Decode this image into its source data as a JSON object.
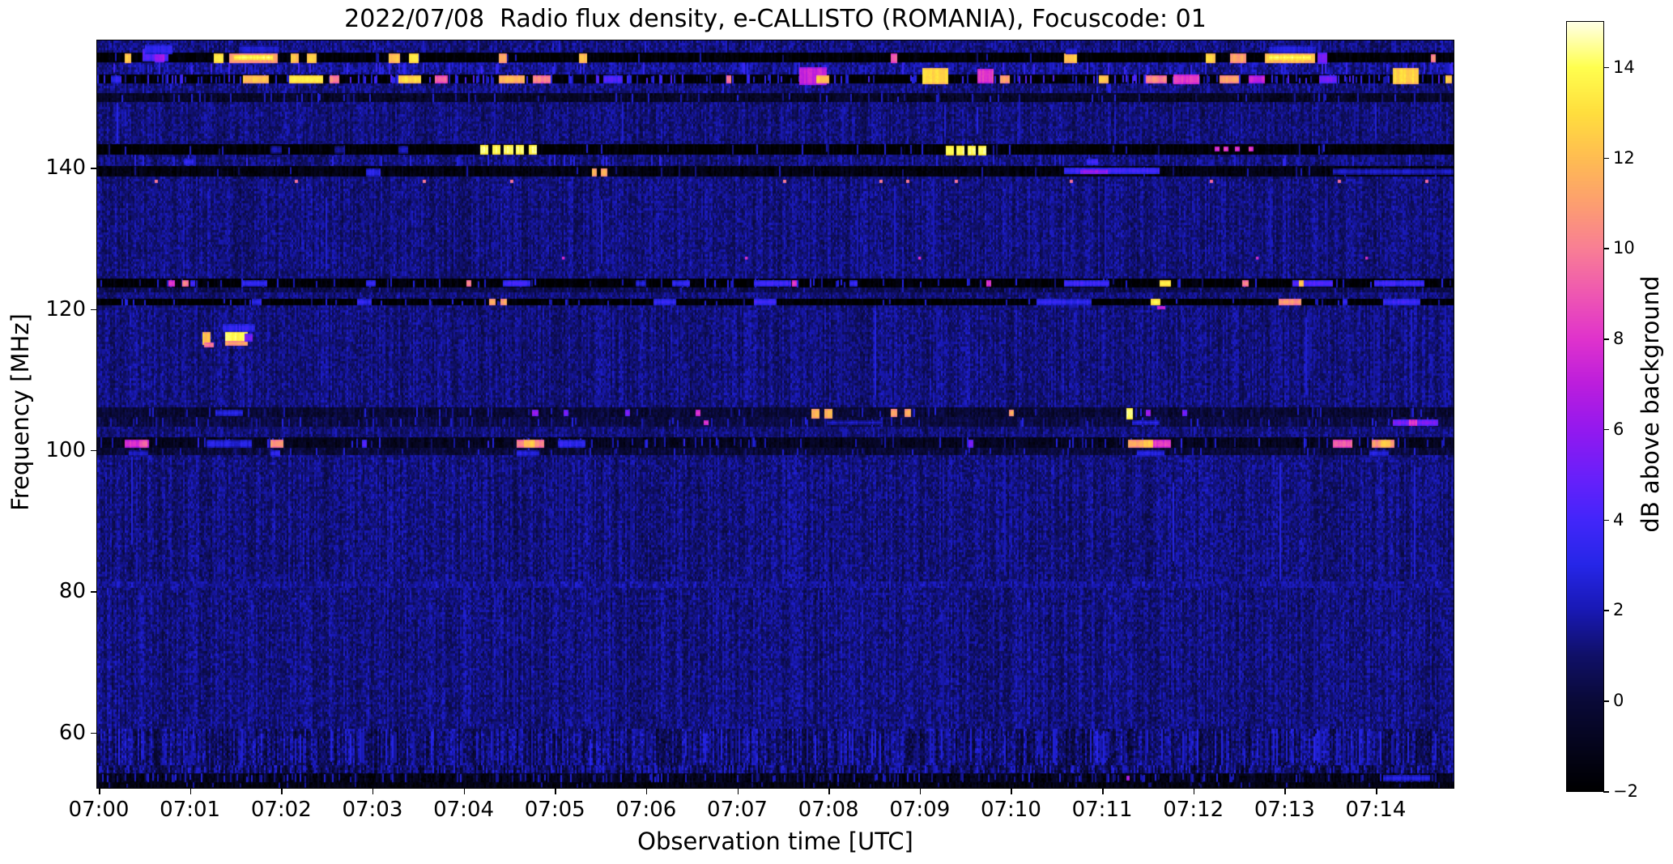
{
  "chart_data": {
    "type": "heatmap",
    "title": "2022/07/08  Radio flux density, e-CALLISTO (ROMANIA), Focuscode: 01",
    "xlabel": "Observation time [UTC]",
    "ylabel": "Frequency [MHz]",
    "xlim_minutes": [
      0,
      14.87
    ],
    "ylim": [
      52.2,
      158.0
    ],
    "x_ticks": [
      {
        "minute": 0,
        "label": "07:00"
      },
      {
        "minute": 1,
        "label": "07:01"
      },
      {
        "minute": 2,
        "label": "07:02"
      },
      {
        "minute": 3,
        "label": "07:03"
      },
      {
        "minute": 4,
        "label": "07:04"
      },
      {
        "minute": 5,
        "label": "07:05"
      },
      {
        "minute": 6,
        "label": "07:06"
      },
      {
        "minute": 7,
        "label": "07:07"
      },
      {
        "minute": 8,
        "label": "07:08"
      },
      {
        "minute": 9,
        "label": "07:09"
      },
      {
        "minute": 10,
        "label": "07:10"
      },
      {
        "minute": 11,
        "label": "07:11"
      },
      {
        "minute": 12,
        "label": "07:12"
      },
      {
        "minute": 13,
        "label": "07:13"
      },
      {
        "minute": 14,
        "label": "07:14"
      }
    ],
    "y_ticks": [
      {
        "value": 140,
        "label": "140"
      },
      {
        "value": 120,
        "label": "120"
      },
      {
        "value": 100,
        "label": "100"
      },
      {
        "value": 80,
        "label": "80"
      },
      {
        "value": 60,
        "label": "60"
      }
    ],
    "colorbar": {
      "label": "dB above background",
      "range": [
        -2,
        15
      ],
      "ticks": [
        {
          "value": -2,
          "label": "−2"
        },
        {
          "value": 0,
          "label": "0"
        },
        {
          "value": 2,
          "label": "2"
        },
        {
          "value": 4,
          "label": "4"
        },
        {
          "value": 6,
          "label": "6"
        },
        {
          "value": 8,
          "label": "8"
        },
        {
          "value": 10,
          "label": "10"
        },
        {
          "value": 12,
          "label": "12"
        },
        {
          "value": 14,
          "label": "14"
        }
      ],
      "colormap_stops": [
        [
          -2,
          "#000000"
        ],
        [
          -1,
          "#05051c"
        ],
        [
          0,
          "#0a0a38"
        ],
        [
          1,
          "#101068"
        ],
        [
          2,
          "#1919b4"
        ],
        [
          3,
          "#2626e8"
        ],
        [
          4,
          "#4326fa"
        ],
        [
          5,
          "#6b20fa"
        ],
        [
          6,
          "#9419ef"
        ],
        [
          7,
          "#bc1edd"
        ],
        [
          8,
          "#e033cd"
        ],
        [
          9,
          "#ef58b2"
        ],
        [
          10,
          "#f97f95"
        ],
        [
          11,
          "#fd9f70"
        ],
        [
          12,
          "#ffbd52"
        ],
        [
          13,
          "#ffdf3e"
        ],
        [
          14,
          "#ffff4f"
        ],
        [
          15,
          "#ffffe6"
        ]
      ]
    },
    "background_level_db": 0.9,
    "bands": [
      [
        156.2,
        158.0,
        0.9,
        0.9,
        0.02,
        1.5,
        3.0,
        1
      ],
      [
        154.8,
        156.2,
        -1.9,
        0.25,
        0.02,
        1.0,
        2.5,
        1
      ],
      [
        153.1,
        154.8,
        1.2,
        0.9,
        0.1,
        2.0,
        4.0,
        1
      ],
      [
        151.9,
        153.1,
        -1.9,
        0.25,
        0.3,
        1.5,
        4.5,
        1
      ],
      [
        150.5,
        151.9,
        0.9,
        0.8,
        0.05,
        1.5,
        3.0,
        1
      ],
      [
        149.2,
        150.5,
        -0.8,
        0.5,
        0.08,
        1.0,
        3.0,
        1
      ],
      [
        143.3,
        149.2,
        0.9,
        0.8,
        0.02,
        1.5,
        3.0,
        1
      ],
      [
        141.8,
        143.3,
        -1.9,
        0.25,
        0.05,
        1.0,
        3.0,
        1
      ],
      [
        140.2,
        141.8,
        0.9,
        0.8,
        0.1,
        1.5,
        3.5,
        1
      ],
      [
        138.7,
        140.2,
        -1.5,
        0.35,
        0.03,
        1.0,
        2.5,
        1
      ],
      [
        124.2,
        138.7,
        0.95,
        0.8,
        0.01,
        1.5,
        3.0,
        1
      ],
      [
        123.0,
        124.2,
        -1.9,
        0.25,
        0.1,
        1.0,
        3.5,
        1
      ],
      [
        122.3,
        123.0,
        0.2,
        0.6,
        0.05,
        1.0,
        2.5,
        1
      ],
      [
        121.4,
        122.3,
        0.9,
        0.7,
        0.03,
        1.0,
        2.5,
        1
      ],
      [
        120.5,
        121.4,
        -1.9,
        0.25,
        0.07,
        1.0,
        3.0,
        1
      ],
      [
        106.0,
        120.5,
        0.95,
        0.8,
        0.01,
        1.5,
        3.0,
        1
      ],
      [
        104.6,
        106.0,
        -0.4,
        0.5,
        0.06,
        1.0,
        3.0,
        1
      ],
      [
        103.3,
        104.6,
        0.0,
        0.5,
        0.1,
        1.0,
        3.0,
        1
      ],
      [
        101.8,
        103.3,
        0.9,
        0.7,
        0.03,
        1.0,
        2.5,
        1
      ],
      [
        100.3,
        101.8,
        -1.0,
        0.4,
        0.12,
        1.0,
        3.5,
        1
      ],
      [
        99.2,
        100.3,
        -0.2,
        0.5,
        0.08,
        1.0,
        3.0,
        1
      ],
      [
        81.4,
        99.2,
        0.95,
        0.85,
        0.01,
        1.5,
        3.0,
        1
      ],
      [
        80.5,
        81.4,
        1.35,
        0.7,
        0.02,
        1.5,
        3.0,
        1
      ],
      [
        60.5,
        80.5,
        0.95,
        0.85,
        0.01,
        1.5,
        3.0,
        1
      ],
      [
        55.3,
        60.5,
        0.7,
        1.0,
        0.1,
        1.5,
        3.2,
        2.2
      ],
      [
        54.2,
        55.3,
        0.5,
        1.0,
        0.12,
        1.5,
        3.0,
        2.5
      ],
      [
        53.0,
        54.2,
        -1.2,
        0.5,
        0.2,
        1.0,
        3.0,
        1.5
      ],
      [
        52.2,
        53.0,
        -1.5,
        0.4,
        0.05,
        1.0,
        2.0,
        1
      ]
    ],
    "bursts": [
      [
        0.3,
        155.5,
        0.07,
        1.3,
        13
      ],
      [
        0.5,
        155.9,
        0.28,
        1.8,
        5
      ],
      [
        0.63,
        155.8,
        0.1,
        1.5,
        7
      ],
      [
        1.28,
        155.5,
        0.1,
        1.3,
        14
      ],
      [
        1.45,
        155.5,
        0.52,
        1.3,
        12
      ],
      [
        1.5,
        155.6,
        0.42,
        0.6,
        14.7
      ],
      [
        2.12,
        155.5,
        0.08,
        1.3,
        13
      ],
      [
        2.3,
        155.5,
        0.1,
        1.3,
        13.5
      ],
      [
        3.2,
        155.5,
        0.12,
        1.3,
        13
      ],
      [
        3.42,
        155.5,
        0.1,
        1.3,
        14
      ],
      [
        4.4,
        155.5,
        0.08,
        1.3,
        12
      ],
      [
        5.28,
        155.5,
        0.08,
        1.3,
        13
      ],
      [
        8.7,
        155.5,
        0.07,
        1.3,
        10
      ],
      [
        10.6,
        155.5,
        0.14,
        1.3,
        13
      ],
      [
        12.15,
        155.5,
        0.1,
        1.3,
        13.5
      ],
      [
        12.42,
        155.5,
        0.18,
        1.3,
        12
      ],
      [
        12.8,
        155.5,
        0.55,
        1.3,
        13
      ],
      [
        12.85,
        155.6,
        0.45,
        0.6,
        14.7
      ],
      [
        13.38,
        155.5,
        0.1,
        1.5,
        6
      ],
      [
        14.62,
        155.5,
        0.05,
        1.1,
        11
      ],
      [
        0.52,
        156.8,
        0.3,
        1.2,
        4
      ],
      [
        1.55,
        156.8,
        0.45,
        1.0,
        3.2
      ],
      [
        12.85,
        156.8,
        0.5,
        1.0,
        3.4
      ],
      [
        10.62,
        156.6,
        0.12,
        0.8,
        3.5
      ],
      [
        0.15,
        152.5,
        0.1,
        1.2,
        4
      ],
      [
        1.6,
        152.5,
        0.28,
        1.2,
        13
      ],
      [
        2.1,
        152.5,
        0.38,
        1.2,
        14
      ],
      [
        2.55,
        152.5,
        0.1,
        1.2,
        11
      ],
      [
        3.3,
        152.5,
        0.24,
        1.2,
        13.5
      ],
      [
        3.7,
        152.5,
        0.14,
        1.2,
        10
      ],
      [
        4.4,
        152.5,
        0.28,
        1.2,
        12.5
      ],
      [
        4.78,
        152.5,
        0.18,
        1.2,
        11
      ],
      [
        5.55,
        152.5,
        0.2,
        1.2,
        5
      ],
      [
        6.9,
        152.5,
        0.05,
        1.2,
        11
      ],
      [
        7.7,
        153.0,
        0.3,
        2.4,
        8
      ],
      [
        7.88,
        152.5,
        0.14,
        1.2,
        13
      ],
      [
        9.05,
        153.0,
        0.28,
        2.2,
        13.5
      ],
      [
        9.65,
        153.0,
        0.18,
        2.0,
        9
      ],
      [
        9.9,
        152.5,
        0.1,
        1.2,
        12
      ],
      [
        10.98,
        152.5,
        0.1,
        1.2,
        13.2
      ],
      [
        11.5,
        152.5,
        0.22,
        1.2,
        11
      ],
      [
        11.8,
        152.5,
        0.28,
        1.4,
        9
      ],
      [
        12.3,
        152.5,
        0.22,
        1.2,
        12
      ],
      [
        12.62,
        152.5,
        0.18,
        1.2,
        8
      ],
      [
        13.4,
        152.5,
        0.18,
        1.2,
        6
      ],
      [
        14.2,
        153.0,
        0.28,
        2.2,
        13.5
      ],
      [
        14.78,
        152.5,
        0.07,
        1.2,
        13.2
      ],
      [
        4.2,
        142.5,
        0.09,
        1.4,
        14.8
      ],
      [
        4.33,
        142.5,
        0.09,
        1.4,
        14.8
      ],
      [
        4.46,
        142.5,
        0.09,
        1.4,
        14.8
      ],
      [
        4.59,
        142.5,
        0.09,
        1.4,
        14.8
      ],
      [
        4.73,
        142.5,
        0.09,
        1.4,
        14.8
      ],
      [
        9.3,
        142.5,
        0.08,
        1.3,
        14.8
      ],
      [
        9.42,
        142.5,
        0.08,
        1.3,
        14.8
      ],
      [
        9.54,
        142.5,
        0.08,
        1.3,
        14.8
      ],
      [
        9.66,
        142.5,
        0.08,
        1.3,
        14.8
      ],
      [
        12.25,
        142.7,
        0.05,
        0.6,
        9
      ],
      [
        12.35,
        142.7,
        0.05,
        0.6,
        9
      ],
      [
        12.47,
        142.7,
        0.05,
        0.6,
        9
      ],
      [
        12.62,
        142.7,
        0.05,
        0.6,
        9
      ],
      [
        1.9,
        142.5,
        0.12,
        1.2,
        2.5
      ],
      [
        2.6,
        142.5,
        0.1,
        1.2,
        2.5
      ],
      [
        3.3,
        142.5,
        0.1,
        1.2,
        2.8
      ],
      [
        2.95,
        139.4,
        0.16,
        1.0,
        3.8
      ],
      [
        5.42,
        139.4,
        0.06,
        1.0,
        12.3
      ],
      [
        5.52,
        139.4,
        0.06,
        1.0,
        12.3
      ],
      [
        10.6,
        139.5,
        1.05,
        0.9,
        4.6
      ],
      [
        10.78,
        139.5,
        0.3,
        0.6,
        7
      ],
      [
        13.55,
        139.5,
        2.0,
        0.8,
        3
      ],
      [
        0.95,
        140.9,
        0.1,
        0.8,
        4
      ],
      [
        10.85,
        140.9,
        0.12,
        0.8,
        4.5
      ],
      [
        0.78,
        123.6,
        0.06,
        1.0,
        9
      ],
      [
        0.93,
        123.6,
        0.06,
        1.0,
        11
      ],
      [
        1.02,
        123.6,
        0.05,
        1.0,
        4.5
      ],
      [
        1.6,
        123.6,
        0.26,
        1.0,
        4
      ],
      [
        2.95,
        123.6,
        0.1,
        1.0,
        4
      ],
      [
        4.05,
        123.6,
        0.05,
        1.0,
        11
      ],
      [
        4.45,
        123.6,
        0.3,
        1.0,
        4.5
      ],
      [
        5.9,
        123.6,
        0.1,
        1.0,
        3.5
      ],
      [
        6.3,
        123.6,
        0.2,
        1.0,
        4
      ],
      [
        7.2,
        123.6,
        0.4,
        1.0,
        4.5
      ],
      [
        7.62,
        123.6,
        0.05,
        1.0,
        9
      ],
      [
        8.25,
        123.6,
        0.08,
        1.0,
        4
      ],
      [
        9.75,
        123.6,
        0.05,
        1.0,
        9
      ],
      [
        10.6,
        123.6,
        0.5,
        1.0,
        4.5
      ],
      [
        11.65,
        123.6,
        0.12,
        1.0,
        14.2
      ],
      [
        12.55,
        123.6,
        0.07,
        1.0,
        11
      ],
      [
        13.1,
        123.6,
        0.45,
        1.0,
        5
      ],
      [
        13.17,
        123.6,
        0.06,
        1.0,
        13
      ],
      [
        14.0,
        123.6,
        0.55,
        1.0,
        4.5
      ],
      [
        1.7,
        121.0,
        0.1,
        0.9,
        4
      ],
      [
        2.85,
        121.0,
        0.15,
        0.9,
        4
      ],
      [
        4.3,
        121.0,
        0.06,
        0.9,
        12
      ],
      [
        4.42,
        121.0,
        0.06,
        0.9,
        12
      ],
      [
        6.1,
        121.0,
        0.25,
        0.9,
        4
      ],
      [
        7.2,
        121.0,
        0.25,
        0.9,
        4.5
      ],
      [
        10.3,
        121.0,
        0.6,
        0.9,
        4
      ],
      [
        11.55,
        121.0,
        0.1,
        0.9,
        14.2
      ],
      [
        11.62,
        120.2,
        0.08,
        0.5,
        9
      ],
      [
        12.95,
        121.0,
        0.25,
        0.9,
        11.5
      ],
      [
        13.65,
        121.0,
        0.06,
        0.9,
        4
      ],
      [
        14.1,
        121.0,
        0.4,
        0.9,
        4.5
      ],
      [
        1.15,
        115.9,
        0.09,
        1.7,
        13
      ],
      [
        1.4,
        116.1,
        0.24,
        1.5,
        14.8
      ],
      [
        1.4,
        115.2,
        0.24,
        0.5,
        12
      ],
      [
        1.38,
        117.3,
        0.34,
        1.2,
        4
      ],
      [
        1.17,
        114.9,
        0.1,
        0.6,
        11
      ],
      [
        1.62,
        116.0,
        0.08,
        1.0,
        6
      ],
      [
        1.3,
        105.3,
        0.3,
        0.8,
        3.5
      ],
      [
        4.77,
        105.3,
        0.06,
        0.8,
        7
      ],
      [
        5.11,
        105.3,
        0.05,
        0.8,
        6
      ],
      [
        5.79,
        105.3,
        0.05,
        0.8,
        6
      ],
      [
        6.56,
        105.3,
        0.05,
        0.8,
        9
      ],
      [
        7.83,
        105.2,
        0.09,
        1.3,
        12.5
      ],
      [
        7.97,
        105.2,
        0.09,
        1.3,
        12.5
      ],
      [
        8.7,
        105.3,
        0.07,
        1.0,
        12
      ],
      [
        8.85,
        105.3,
        0.07,
        1.0,
        12
      ],
      [
        10.0,
        105.3,
        0.05,
        0.9,
        12
      ],
      [
        11.28,
        105.2,
        0.07,
        1.5,
        14.8
      ],
      [
        11.5,
        105.3,
        0.05,
        0.8,
        7
      ],
      [
        11.9,
        105.3,
        0.05,
        0.8,
        6
      ],
      [
        6.65,
        103.9,
        0.05,
        0.7,
        9
      ],
      [
        8.0,
        103.9,
        0.6,
        0.7,
        3
      ],
      [
        11.35,
        103.9,
        0.3,
        0.7,
        3.5
      ],
      [
        14.2,
        103.9,
        0.5,
        0.8,
        6
      ],
      [
        14.38,
        103.9,
        0.08,
        0.8,
        9
      ],
      [
        0.3,
        101.0,
        0.26,
        1.0,
        8.5
      ],
      [
        0.46,
        101.0,
        0.08,
        1.0,
        10
      ],
      [
        1.2,
        101.0,
        0.5,
        1.0,
        3.5
      ],
      [
        1.9,
        101.0,
        0.13,
        1.0,
        11.5
      ],
      [
        2.9,
        101.0,
        0.05,
        1.0,
        5
      ],
      [
        4.6,
        101.0,
        0.3,
        1.0,
        11
      ],
      [
        4.68,
        101.0,
        0.12,
        1.0,
        13
      ],
      [
        5.05,
        101.0,
        0.3,
        1.0,
        4
      ],
      [
        9.55,
        101.0,
        0.05,
        1.0,
        6
      ],
      [
        11.3,
        101.0,
        0.2,
        1.0,
        12
      ],
      [
        11.47,
        101.0,
        0.1,
        1.0,
        13
      ],
      [
        11.58,
        101.0,
        0.18,
        1.0,
        9
      ],
      [
        13.55,
        101.0,
        0.2,
        1.0,
        10
      ],
      [
        13.97,
        101.0,
        0.25,
        1.0,
        11.5
      ],
      [
        14.07,
        101.0,
        0.1,
        1.0,
        13
      ],
      [
        0.35,
        99.6,
        0.2,
        0.7,
        3
      ],
      [
        1.9,
        99.6,
        0.1,
        0.7,
        4
      ],
      [
        4.6,
        99.6,
        0.25,
        0.7,
        3.5
      ],
      [
        11.4,
        99.6,
        0.3,
        0.7,
        3.5
      ],
      [
        13.95,
        99.6,
        0.2,
        0.7,
        3.5
      ],
      [
        11.28,
        53.6,
        0.04,
        0.6,
        8
      ],
      [
        14.1,
        53.6,
        0.5,
        0.8,
        3.5
      ]
    ],
    "dot_rows": [
      {
        "freq": 138.3,
        "value": 10,
        "width_min": 0.035,
        "height_mhz": 0.45,
        "times": [
          0.63,
          2.17,
          3.57,
          4.53,
          7.52,
          8.58,
          8.87,
          9.4,
          10.66,
          12.2,
          13.6,
          14.56
        ]
      },
      {
        "freq": 127.4,
        "value": 8,
        "width_min": 0.03,
        "height_mhz": 0.4,
        "times": [
          5.1,
          7.1,
          9.0,
          12.7,
          13.9,
          14.9
        ]
      }
    ]
  }
}
